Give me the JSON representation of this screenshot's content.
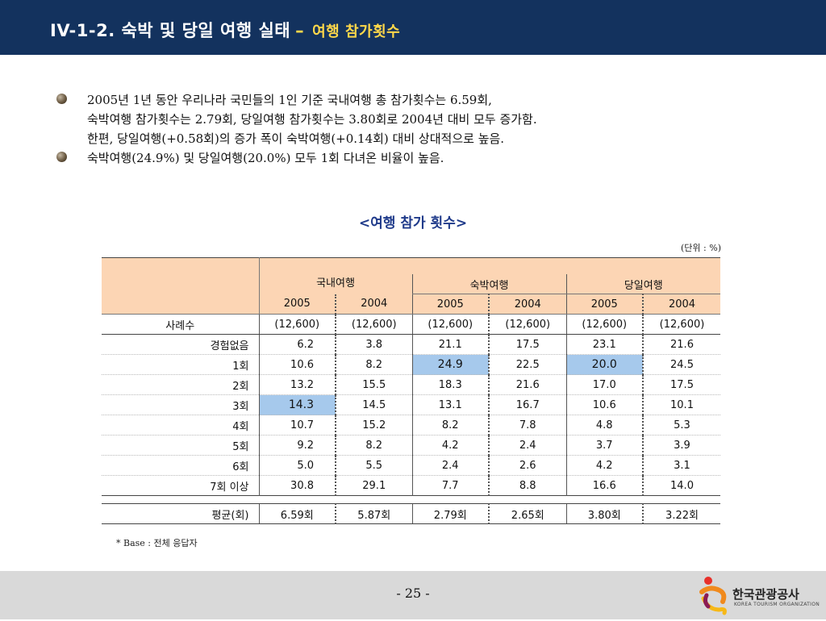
{
  "header": {
    "title": "IV-1-2. 숙박 및 당일 여행 실태",
    "dash": "–",
    "subtitle": "여행 참가횟수"
  },
  "bullets": [
    {
      "lines": [
        "2005년 1년 동안 우리나라 국민들의 1인 기준 국내여행 총 참가횟수는 6.59회,",
        "숙박여행 참가횟수는 2.79회, 당일여행 참가횟수는 3.80회로 2004년 대비 모두 증가함.",
        "한편, 당일여행(+0.58회)의 증가 폭이 숙박여행(+0.14회) 대비 상대적으로 높음."
      ]
    },
    {
      "lines": [
        "숙박여행(24.9%) 및 당일여행(20.0%) 모두 1회 다녀온 비율이 높음."
      ]
    }
  ],
  "table": {
    "title": "<여행 참가 횟수>",
    "unit": "(단위 : %)",
    "group_header": "국내여행",
    "sub_groups": [
      "숙박여행",
      "당일여행"
    ],
    "years": [
      "2005",
      "2004",
      "2005",
      "2004",
      "2005",
      "2004"
    ],
    "case_row": {
      "label": "사례수",
      "values": [
        "(12,600)",
        "(12,600)",
        "(12,600)",
        "(12,600)",
        "(12,600)",
        "(12,600)"
      ]
    },
    "rows": [
      {
        "label": "경험없음",
        "values": [
          "6.2",
          "3.8",
          "21.1",
          "17.5",
          "23.1",
          "21.6"
        ]
      },
      {
        "label": "1회",
        "values": [
          "10.6",
          "8.2",
          "24.9",
          "22.5",
          "20.0",
          "24.5"
        ]
      },
      {
        "label": "2회",
        "values": [
          "13.2",
          "15.5",
          "18.3",
          "21.6",
          "17.0",
          "17.5"
        ]
      },
      {
        "label": "3회",
        "values": [
          "14.3",
          "14.5",
          "13.1",
          "16.7",
          "10.6",
          "10.1"
        ]
      },
      {
        "label": "4회",
        "values": [
          "10.7",
          "15.2",
          "8.2",
          "7.8",
          "4.8",
          "5.3"
        ]
      },
      {
        "label": "5회",
        "values": [
          "9.2",
          "8.2",
          "4.2",
          "2.4",
          "3.7",
          "3.9"
        ]
      },
      {
        "label": "6회",
        "values": [
          "5.0",
          "5.5",
          "2.4",
          "2.6",
          "4.2",
          "3.1"
        ]
      },
      {
        "label": "7회 이상",
        "values": [
          "30.8",
          "29.1",
          "7.7",
          "8.8",
          "16.6",
          "14.0"
        ]
      }
    ],
    "avg_row": {
      "label": "평균(회)",
      "values": [
        "6.59회",
        "5.87회",
        "2.79회",
        "2.65회",
        "3.80회",
        "3.22회"
      ]
    },
    "highlight_color": "#a6c9ec",
    "header_color": "#fcd5b4"
  },
  "footnote": "* Base : 전체 응답자",
  "footer": {
    "page_number": "- 25 -",
    "logo_text": "한국관광공사",
    "logo_sub": "KOREA TOURISM ORGANIZATION"
  },
  "colors": {
    "header_bg": "#13325e",
    "title_accent": "#ffd84a",
    "table_title": "#1f3a8a"
  }
}
